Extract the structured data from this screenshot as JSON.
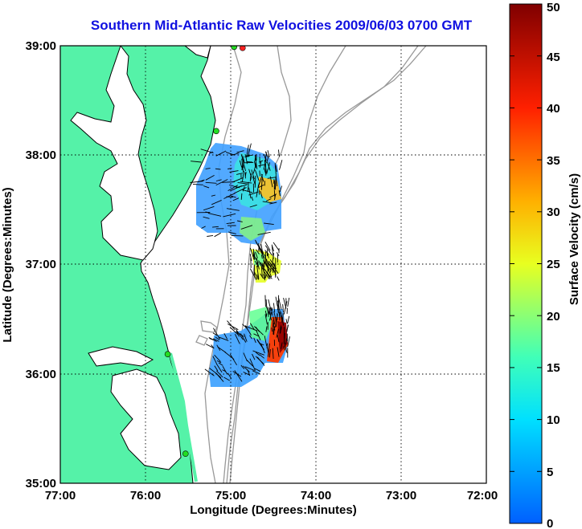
{
  "title": "Southern Mid-Atlantic Raw Velocities 2009/06/03 0700 GMT",
  "axes": {
    "xlabel": "Longitude (Degrees:Minutes)",
    "ylabel": "Latitude (Degrees:Minutes)",
    "x_ticks": [
      "77:00",
      "76:00",
      "75:00",
      "74:00",
      "73:00",
      "72:00"
    ],
    "y_ticks": [
      "39:00",
      "38:00",
      "37:00",
      "36:00",
      "35:00"
    ],
    "x_range": [
      -77,
      -72
    ],
    "y_range": [
      35,
      39
    ],
    "grid": "dotted"
  },
  "colorbar": {
    "label": "Surface Velocity (cm/s)",
    "ticks": [
      "0",
      "5",
      "10",
      "15",
      "20",
      "25",
      "30",
      "35",
      "40",
      "45",
      "50"
    ],
    "range": [
      0,
      50
    ]
  },
  "colors": {
    "land": "#55f2a8",
    "coast": "#000000",
    "bathymetry": "#999999",
    "station": "#22dd22",
    "station_highlight": "#ff2222",
    "title": "#1010e0"
  },
  "stations": [
    {
      "lon": -74.86,
      "lat": 38.98,
      "status": "alert"
    },
    {
      "lon": -74.96,
      "lat": 38.99,
      "status": "ok"
    },
    {
      "lon": -75.17,
      "lat": 38.22,
      "status": "ok"
    },
    {
      "lon": -75.74,
      "lat": 36.18,
      "status": "ok"
    },
    {
      "lon": -75.53,
      "lat": 35.27,
      "status": "ok"
    }
  ]
}
